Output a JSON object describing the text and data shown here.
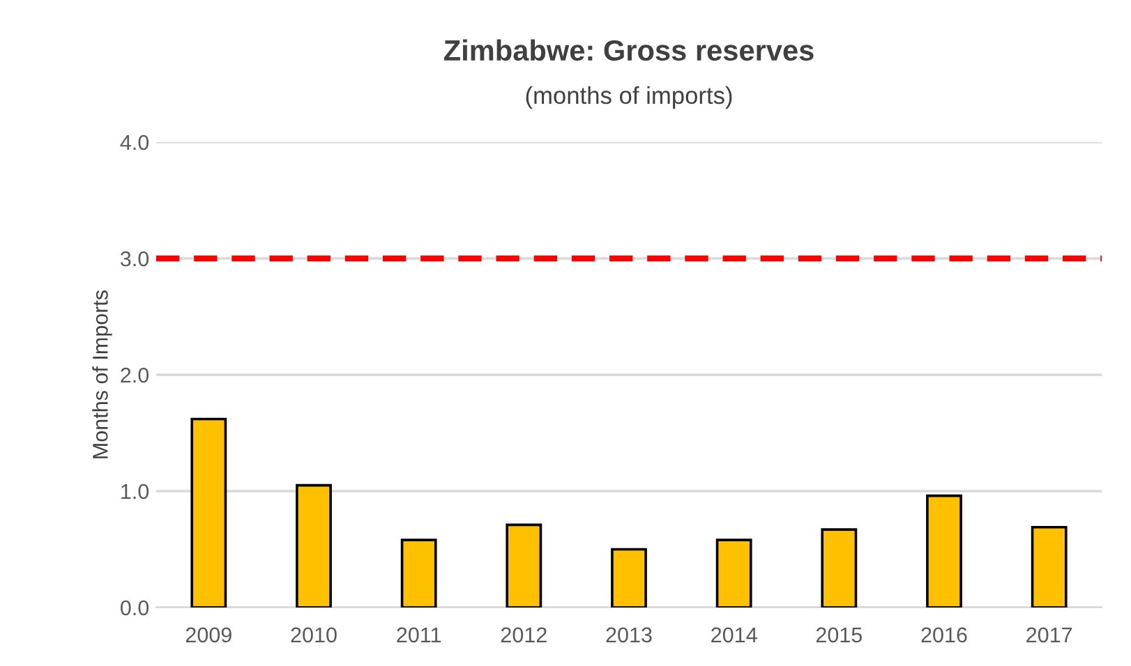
{
  "chart_data": {
    "type": "bar",
    "title": "Zimbabwe: Gross reserves",
    "subtitle": "(months of imports)",
    "ylabel": "Months of Imports",
    "categories": [
      "2009",
      "2010",
      "2011",
      "2012",
      "2013",
      "2014",
      "2015",
      "2016",
      "2017"
    ],
    "values": [
      1.62,
      1.05,
      0.58,
      0.71,
      0.5,
      0.58,
      0.67,
      0.96,
      0.69
    ],
    "color": "#ffc000",
    "ylim": [
      0,
      4
    ],
    "yticks": [
      {
        "value": 0,
        "label": "0.0"
      },
      {
        "value": 1,
        "label": "1.0"
      },
      {
        "value": 2,
        "label": "2.0"
      },
      {
        "value": 3,
        "label": "3.0"
      },
      {
        "value": 4,
        "label": "4.0"
      }
    ],
    "grid": "y",
    "ref_lines": [
      {
        "axis": "y",
        "value": 3,
        "color": "#ff0000",
        "line_style": "dashed"
      }
    ]
  }
}
